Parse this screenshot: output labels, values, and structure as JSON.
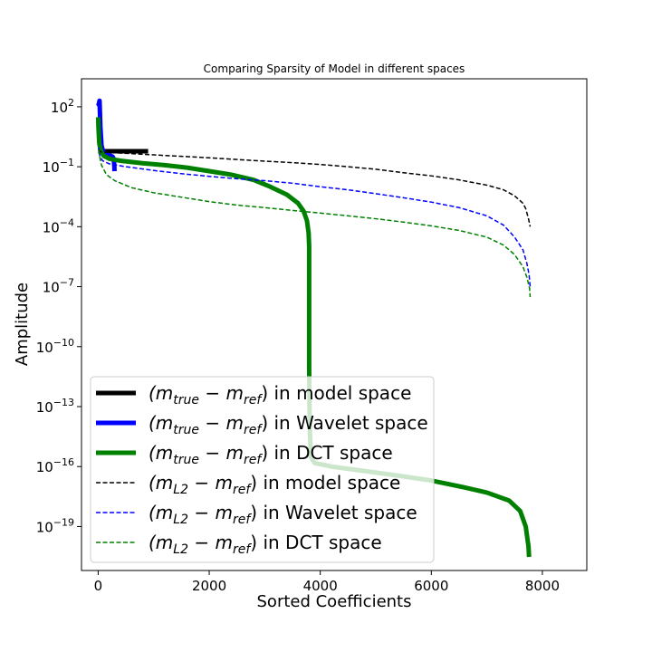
{
  "chart_data": {
    "type": "line",
    "title": "Comparing Sparsity of Model in different spaces",
    "xlabel": "Sorted Coefficients",
    "ylabel": "Amplitude",
    "xlim": [
      -300,
      8800
    ],
    "ylim_log10": [
      -21.2,
      3.4
    ],
    "y_scale": "log",
    "x_ticks": [
      0,
      2000,
      4000,
      6000,
      8000
    ],
    "x_tick_labels": [
      "0",
      "2000",
      "4000",
      "6000",
      "8000"
    ],
    "y_ticks_log10": [
      2,
      -1,
      -4,
      -7,
      -10,
      -13,
      -16,
      -19
    ],
    "y_tick_exponents": [
      "2",
      "−1",
      "−4",
      "−7",
      "−10",
      "−13",
      "−16",
      "−19"
    ],
    "y_tick_base": "10",
    "legend_position": "lower-left",
    "series": [
      {
        "name": "(m_true − m_ref) in model space",
        "legend_main": "(m",
        "legend_sub1": "true",
        "legend_mid": " − m",
        "legend_sub2": "ref",
        "legend_tail": ") in model space",
        "color": "#000000",
        "style": "solid",
        "width": 5,
        "points": [
          [
            0,
            0.6
          ],
          [
            900,
            0.6
          ]
        ]
      },
      {
        "name": "(m_true − m_ref) in Wavelet space",
        "legend_main": "(m",
        "legend_sub1": "true",
        "legend_mid": " − m",
        "legend_sub2": "ref",
        "legend_tail": ") in Wavelet space",
        "color": "#0000ff",
        "style": "solid",
        "width": 5,
        "points": [
          [
            0,
            150
          ],
          [
            10,
            130
          ],
          [
            25,
            200
          ],
          [
            40,
            10
          ],
          [
            60,
            1.2
          ],
          [
            80,
            0.7
          ],
          [
            120,
            0.45
          ],
          [
            170,
            0.4
          ],
          [
            220,
            0.36
          ],
          [
            260,
            0.32
          ],
          [
            280,
            0.25
          ],
          [
            290,
            0.12
          ],
          [
            295,
            0.06
          ]
        ]
      },
      {
        "name": "(m_true − m_ref) in DCT space",
        "legend_main": "(m",
        "legend_sub1": "true",
        "legend_mid": " − m",
        "legend_sub2": "ref",
        "legend_tail": ") in DCT space",
        "color": "#008000",
        "style": "solid",
        "width": 5,
        "points": [
          [
            0,
            30
          ],
          [
            5,
            10
          ],
          [
            20,
            1.5
          ],
          [
            50,
            0.6
          ],
          [
            100,
            0.35
          ],
          [
            200,
            0.25
          ],
          [
            400,
            0.2
          ],
          [
            800,
            0.15
          ],
          [
            1200,
            0.12
          ],
          [
            1600,
            0.09
          ],
          [
            2000,
            0.06
          ],
          [
            2400,
            0.04
          ],
          [
            2800,
            0.022
          ],
          [
            3100,
            0.01
          ],
          [
            3400,
            0.004
          ],
          [
            3600,
            0.0015
          ],
          [
            3700,
            0.0006
          ],
          [
            3760,
            0.0002
          ],
          [
            3790,
            5e-05
          ],
          [
            3800,
            1e-05
          ],
          [
            3800,
            1e-11
          ],
          [
            3810,
            1e-14
          ],
          [
            3830,
            3e-16
          ],
          [
            3900,
            1.5e-16
          ],
          [
            4200,
            1e-16
          ],
          [
            4800,
            6e-17
          ],
          [
            5400,
            3.5e-17
          ],
          [
            6000,
            2e-17
          ],
          [
            6600,
            9e-18
          ],
          [
            7000,
            5e-18
          ],
          [
            7400,
            2e-18
          ],
          [
            7600,
            6e-19
          ],
          [
            7700,
            1e-19
          ],
          [
            7750,
            1e-20
          ],
          [
            7760,
            3e-21
          ]
        ]
      },
      {
        "name": "(m_L2 − m_ref) in model space",
        "legend_main": "(m",
        "legend_sub1": "L2",
        "legend_mid": " − m",
        "legend_sub2": "ref",
        "legend_tail": ") in model space",
        "color": "#000000",
        "style": "dashed",
        "width": 1.5,
        "points": [
          [
            0,
            0.7
          ],
          [
            50,
            0.55
          ],
          [
            300,
            0.5
          ],
          [
            800,
            0.42
          ],
          [
            1500,
            0.33
          ],
          [
            2000,
            0.28
          ],
          [
            2500,
            0.23
          ],
          [
            3000,
            0.19
          ],
          [
            3500,
            0.16
          ],
          [
            4000,
            0.13
          ],
          [
            4500,
            0.1
          ],
          [
            5000,
            0.075
          ],
          [
            5500,
            0.05
          ],
          [
            6000,
            0.035
          ],
          [
            6500,
            0.022
          ],
          [
            7000,
            0.012
          ],
          [
            7300,
            0.007
          ],
          [
            7500,
            0.0035
          ],
          [
            7650,
            0.0015
          ],
          [
            7700,
            0.0008
          ],
          [
            7750,
            0.00025
          ],
          [
            7780,
            0.0001
          ]
        ]
      },
      {
        "name": "(m_L2 − m_ref) in Wavelet space",
        "legend_main": "(m",
        "legend_sub1": "L2",
        "legend_mid": " − m",
        "legend_sub2": "ref",
        "legend_tail": ") in Wavelet space",
        "color": "#0000ff",
        "style": "dashed",
        "width": 1.5,
        "points": [
          [
            0,
            1.2
          ],
          [
            30,
            0.35
          ],
          [
            80,
            0.2
          ],
          [
            200,
            0.14
          ],
          [
            500,
            0.1
          ],
          [
            1000,
            0.065
          ],
          [
            1500,
            0.045
          ],
          [
            2000,
            0.033
          ],
          [
            2500,
            0.025
          ],
          [
            3000,
            0.02
          ],
          [
            3500,
            0.015
          ],
          [
            4000,
            0.01
          ],
          [
            4500,
            0.007
          ],
          [
            5000,
            0.0045
          ],
          [
            5500,
            0.0028
          ],
          [
            6000,
            0.0017
          ],
          [
            6500,
            0.0009
          ],
          [
            7000,
            0.00035
          ],
          [
            7300,
            0.00012
          ],
          [
            7500,
            3e-05
          ],
          [
            7650,
            7e-06
          ],
          [
            7720,
            1.5e-06
          ],
          [
            7760,
            4e-07
          ],
          [
            7780,
            1e-07
          ]
        ]
      },
      {
        "name": "(m_L2 − m_ref) in DCT space",
        "legend_main": "(m",
        "legend_sub1": "L2",
        "legend_mid": " − m",
        "legend_sub2": "ref",
        "legend_tail": ") in DCT space",
        "color": "#008000",
        "style": "dashed",
        "width": 1.5,
        "points": [
          [
            0,
            1.5
          ],
          [
            20,
            0.4
          ],
          [
            60,
            0.12
          ],
          [
            150,
            0.04
          ],
          [
            300,
            0.02
          ],
          [
            600,
            0.009
          ],
          [
            1000,
            0.005
          ],
          [
            1500,
            0.003
          ],
          [
            2000,
            0.0018
          ],
          [
            2500,
            0.0012
          ],
          [
            3000,
            0.0009
          ],
          [
            3500,
            0.00065
          ],
          [
            4000,
            0.00048
          ],
          [
            4500,
            0.00035
          ],
          [
            5000,
            0.00025
          ],
          [
            5500,
            0.00017
          ],
          [
            6000,
            0.00011
          ],
          [
            6500,
            6.5e-05
          ],
          [
            7000,
            3e-05
          ],
          [
            7300,
            1.2e-05
          ],
          [
            7500,
            4e-06
          ],
          [
            7650,
            1e-06
          ],
          [
            7720,
            3e-07
          ],
          [
            7770,
            8e-08
          ],
          [
            7780,
            3e-08
          ]
        ]
      }
    ]
  }
}
